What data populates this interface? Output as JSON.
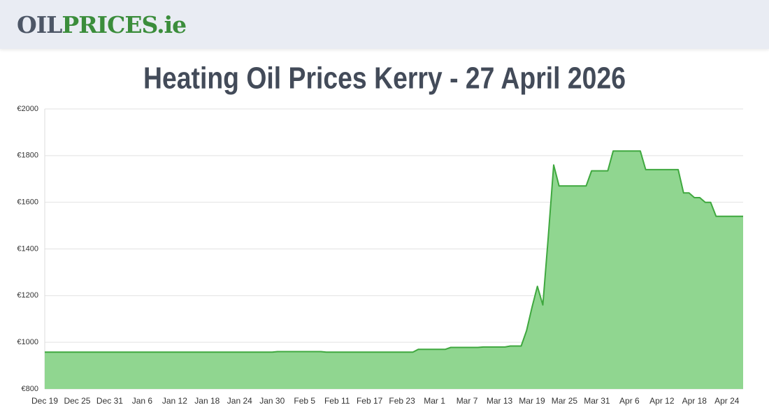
{
  "header": {
    "logo": [
      "OIL",
      "PRICES.ie"
    ]
  },
  "chart_data": {
    "type": "area",
    "title": "Heating Oil Prices Kerry - 27 April 2026",
    "categories": [
      "Dec 19",
      null,
      null,
      null,
      null,
      null,
      "Dec 25",
      null,
      null,
      null,
      null,
      null,
      "Dec 31",
      null,
      null,
      null,
      null,
      null,
      "Jan 6",
      null,
      null,
      null,
      null,
      null,
      "Jan 12",
      null,
      null,
      null,
      null,
      null,
      "Jan 18",
      null,
      null,
      null,
      null,
      null,
      "Jan 24",
      null,
      null,
      null,
      null,
      null,
      "Jan 30",
      null,
      null,
      null,
      null,
      null,
      "Feb 5",
      null,
      null,
      null,
      null,
      null,
      "Feb 11",
      null,
      null,
      null,
      null,
      null,
      "Feb 17",
      null,
      null,
      null,
      null,
      null,
      "Feb 23",
      null,
      null,
      null,
      null,
      null,
      "Mar 1",
      null,
      null,
      null,
      null,
      null,
      "Mar 7",
      null,
      null,
      null,
      null,
      null,
      "Mar 13",
      null,
      null,
      null,
      null,
      null,
      "Mar 19",
      null,
      null,
      null,
      null,
      null,
      "Mar 25",
      null,
      null,
      null,
      null,
      null,
      "Mar 31",
      null,
      null,
      null,
      null,
      null,
      "Apr 6",
      null,
      null,
      null,
      null,
      null,
      "Apr 12",
      null,
      null,
      null,
      null,
      null,
      "Apr 18",
      null,
      null,
      null,
      null,
      null,
      "Apr 24",
      null,
      null,
      null
    ],
    "values": [
      958,
      958,
      958,
      958,
      958,
      958,
      958,
      958,
      958,
      958,
      958,
      958,
      958,
      958,
      958,
      958,
      958,
      958,
      958,
      958,
      958,
      958,
      958,
      958,
      958,
      958,
      958,
      958,
      958,
      958,
      958,
      958,
      958,
      958,
      958,
      958,
      958,
      958,
      958,
      958,
      958,
      958,
      958,
      960,
      960,
      960,
      960,
      960,
      960,
      960,
      960,
      960,
      958,
      958,
      958,
      958,
      958,
      958,
      958,
      958,
      958,
      958,
      958,
      958,
      958,
      958,
      958,
      958,
      958,
      970,
      970,
      970,
      970,
      970,
      970,
      978,
      978,
      978,
      978,
      978,
      978,
      980,
      980,
      980,
      980,
      980,
      984,
      984,
      984,
      1050,
      1150,
      1240,
      1160,
      1450,
      1760,
      1670,
      1670,
      1670,
      1670,
      1670,
      1670,
      1735,
      1735,
      1735,
      1735,
      1820,
      1820,
      1820,
      1820,
      1820,
      1820,
      1740,
      1740,
      1740,
      1740,
      1740,
      1740,
      1740,
      1640,
      1640,
      1620,
      1620,
      1600,
      1600,
      1540,
      1540,
      1540,
      1540,
      1540,
      1540
    ],
    "color": "#3fa83f",
    "fill_color": "#90d690",
    "ylim": [
      800,
      2000
    ],
    "yticks": [
      {
        "value": 800,
        "label": "€800"
      },
      {
        "value": 1000,
        "label": "€1000"
      },
      {
        "value": 1200,
        "label": "€1200"
      },
      {
        "value": 1400,
        "label": "€1400"
      },
      {
        "value": 1600,
        "label": "€1600"
      },
      {
        "value": 1800,
        "label": "€1800"
      },
      {
        "value": 2000,
        "label": "€2000"
      }
    ],
    "grid": true
  }
}
